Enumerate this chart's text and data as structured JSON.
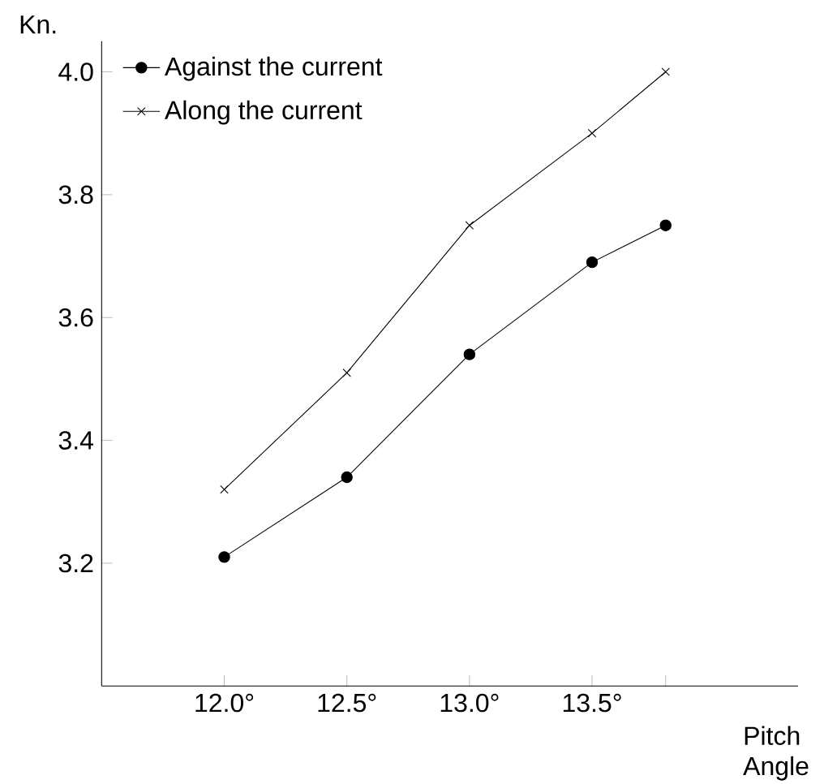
{
  "chart_data": {
    "type": "line",
    "xlabel": "Pitch Angle",
    "ylabel": "Kn.",
    "x": [
      12.0,
      12.5,
      13.0,
      13.5,
      13.8
    ],
    "series": [
      {
        "name": "Against the current",
        "color": "#000000",
        "marker": "circle",
        "values": [
          3.21,
          3.34,
          3.54,
          3.69,
          3.75
        ]
      },
      {
        "name": "Along the current",
        "color": "#000000",
        "marker": "cross",
        "values": [
          3.32,
          3.51,
          3.75,
          3.9,
          4.0
        ]
      }
    ],
    "xlim": [
      11.5,
      14.34
    ],
    "ylim": [
      3.0,
      4.05
    ],
    "xticks": [
      {
        "value": 12.0,
        "label": "12.0°"
      },
      {
        "value": 12.5,
        "label": "12.5°"
      },
      {
        "value": 13.0,
        "label": "13.0°"
      },
      {
        "value": 13.5,
        "label": "13.5°"
      },
      {
        "value": 13.8,
        "label": null
      }
    ],
    "yticks": [
      {
        "value": 3.2,
        "label": "3.2"
      },
      {
        "value": 3.4,
        "label": "3.4"
      },
      {
        "value": 3.6,
        "label": "3.6"
      },
      {
        "value": 3.8,
        "label": "3.8"
      },
      {
        "value": 4.0,
        "label": "4.0"
      }
    ],
    "legend": "top left",
    "line_style": "solid",
    "grid": false
  }
}
